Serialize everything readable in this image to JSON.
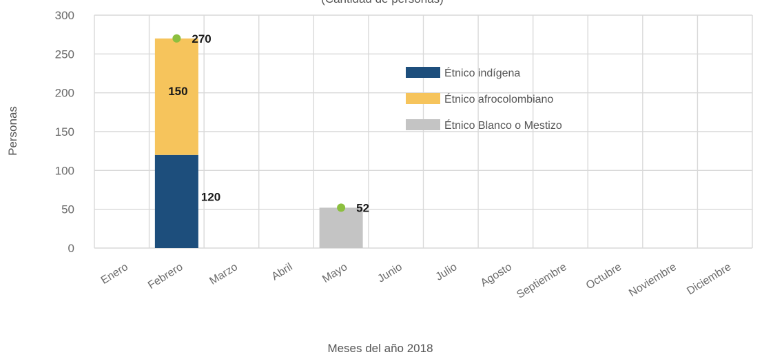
{
  "chart_data": {
    "type": "bar",
    "stacked": true,
    "title": "(Cantidad de personas)",
    "xlabel": "Meses del año 2018",
    "ylabel": "Personas",
    "ylim": [
      0,
      300
    ],
    "yticks": [
      0,
      50,
      100,
      150,
      200,
      250,
      300
    ],
    "grid": true,
    "legend_position": "upper-center",
    "categories": [
      "Enero",
      "Febrero",
      "Marzo",
      "Abril",
      "Mayo",
      "Junio",
      "Julio",
      "Agosto",
      "Septiembre",
      "Octubre",
      "Noviembre",
      "Diciembre"
    ],
    "series": [
      {
        "name": "Étnico indígena",
        "color": "#1d4e7c",
        "values": [
          0,
          120,
          0,
          0,
          0,
          0,
          0,
          0,
          0,
          0,
          0,
          0
        ]
      },
      {
        "name": "Étnico afrocolombiano",
        "color": "#f6c45c",
        "values": [
          0,
          150,
          0,
          0,
          0,
          0,
          0,
          0,
          0,
          0,
          0,
          0
        ]
      },
      {
        "name": "Étnico Blanco o Mestizo",
        "color": "#c4c4c4",
        "values": [
          0,
          0,
          0,
          0,
          52,
          0,
          0,
          0,
          0,
          0,
          0,
          0
        ]
      }
    ],
    "totals": [
      0,
      270,
      0,
      0,
      52,
      0,
      0,
      0,
      0,
      0,
      0,
      0
    ],
    "total_marker_color": "#8cbf3f",
    "segment_labels": [
      {
        "category": "Febrero",
        "series": "Étnico indígena",
        "text": "120"
      },
      {
        "category": "Febrero",
        "series": "Étnico afrocolombiano",
        "text": "150"
      }
    ],
    "total_labels": [
      {
        "category": "Febrero",
        "text": "270"
      },
      {
        "category": "Mayo",
        "text": "52"
      }
    ]
  }
}
